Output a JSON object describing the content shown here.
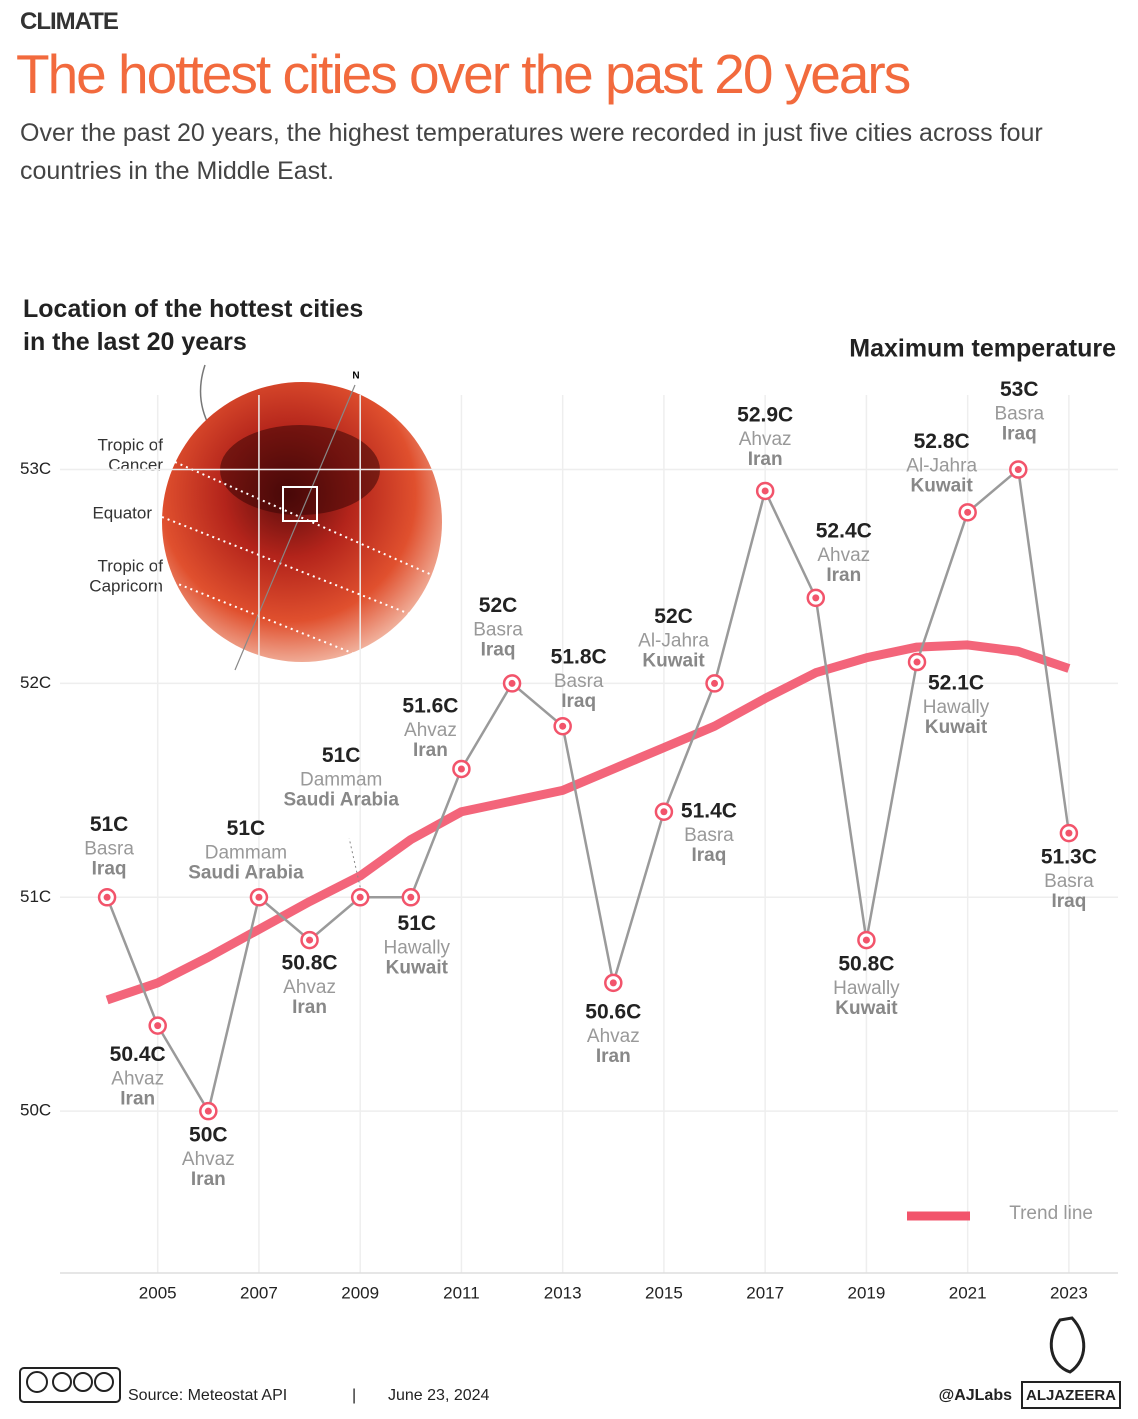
{
  "header": {
    "kicker": "CLIMATE",
    "title": "The hottest cities over the past 20 years",
    "subtitle": "Over the past 20 years, the highest temperatures were recorded in just five cities across four countries in the Middle East."
  },
  "map_inset": {
    "title": "Location of the hottest cities in the last 20 years",
    "north": "N",
    "tropic_of_cancer": [
      "Tropic of",
      "Cancer"
    ],
    "equator": "Equator",
    "tropic_of_capricorn": [
      "Tropic of",
      "Capricorn"
    ]
  },
  "chart_data": {
    "type": "line",
    "x": [
      2004,
      2005,
      2006,
      2007,
      2008,
      2009,
      2010,
      2011,
      2012,
      2013,
      2014,
      2015,
      2016,
      2017,
      2018,
      2019,
      2020,
      2021,
      2022,
      2023
    ],
    "series": [
      {
        "name": "Maximum temperature",
        "color": "#9a9a9a",
        "marker_color": "#f2546b",
        "values": [
          51,
          50.4,
          50,
          51,
          50.8,
          51,
          51,
          51.6,
          52,
          51.8,
          50.6,
          51.4,
          52,
          52.9,
          52.4,
          50.8,
          52.1,
          52.8,
          53,
          51.3
        ],
        "value_labels": [
          "51C",
          "50.4C",
          "50C",
          "51C",
          "50.8C",
          "51C",
          "51C",
          "51.6C",
          "52C",
          "51.8C",
          "50.6C",
          "51.4C",
          "52C",
          "52.9C",
          "52.4C",
          "50.8C",
          "52.1C",
          "52.8C",
          "53C",
          "51.3C"
        ],
        "cities": [
          "Basra",
          "Ahvaz",
          "Ahvaz",
          "Dammam",
          "Ahvaz",
          "Dammam",
          "Hawally",
          "Ahvaz",
          "Basra",
          "Basra",
          "Ahvaz",
          "Basra",
          "Al-Jahra",
          "Ahvaz",
          "Ahvaz",
          "Hawally",
          "Hawally",
          "Al-Jahra",
          "Basra",
          "Basra"
        ],
        "countries": [
          "Iraq",
          "Iran",
          "Iran",
          "Saudi Arabia",
          "Iran",
          "Saudi Arabia",
          "Kuwait",
          "Iran",
          "Iraq",
          "Iraq",
          "Iran",
          "Iraq",
          "Kuwait",
          "Iran",
          "Iran",
          "Kuwait",
          "Kuwait",
          "Kuwait",
          "Iraq",
          "Iraq"
        ]
      },
      {
        "name": "Trend line",
        "color": "#f2546b",
        "values": [
          50.52,
          50.6,
          50.72,
          50.85,
          50.98,
          51.1,
          51.27,
          51.4,
          51.45,
          51.5,
          51.6,
          51.7,
          51.8,
          51.93,
          52.05,
          52.12,
          52.17,
          52.18,
          52.15,
          52.07
        ]
      }
    ],
    "xlim": [
      2003.07,
      2023.97
    ],
    "xticks": [
      2005,
      2007,
      2009,
      2011,
      2013,
      2015,
      2017,
      2019,
      2021,
      2023
    ],
    "ylim": [
      49.22,
      53.4
    ],
    "yticks": [
      {
        "value": 50,
        "label": "50C"
      },
      {
        "value": 51,
        "label": "51C"
      },
      {
        "value": 52,
        "label": "52C"
      },
      {
        "value": 53,
        "label": "53C"
      }
    ],
    "grid": true,
    "legend": "bottom-right"
  },
  "footer": {
    "source": "Source:  Meteostat API",
    "separator": "|",
    "date": "June 23, 2024",
    "handle": "@AJLabs",
    "brand": "ALJAZEERA"
  }
}
